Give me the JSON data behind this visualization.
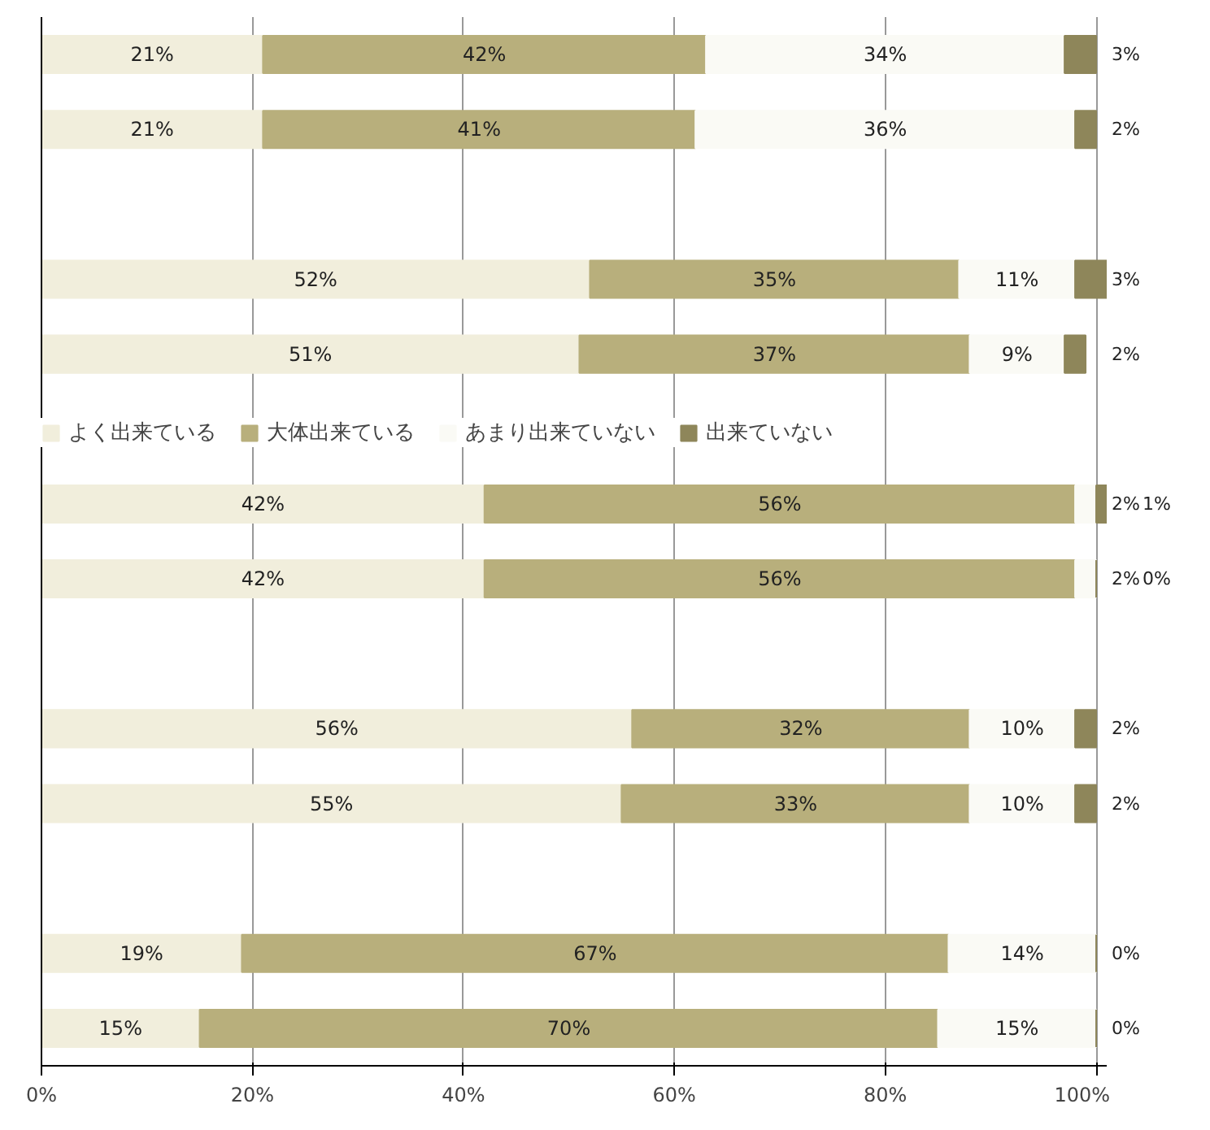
{
  "chart_data": {
    "type": "bar",
    "orientation": "horizontal",
    "stacked": true,
    "categories": [
      null,
      null,
      null,
      null,
      null,
      null,
      null,
      null,
      null,
      null,
      null,
      null,
      null,
      null
    ],
    "series": [
      {
        "name": "よく出来ている",
        "color": "#f1eedc",
        "values": [
          21,
          21,
          null,
          52,
          51,
          null,
          42,
          42,
          null,
          56,
          55,
          null,
          19,
          15
        ],
        "value_labels": [
          "21%",
          "21%",
          null,
          "52%",
          "51%",
          null,
          "42%",
          "42%",
          null,
          "56%",
          "55%",
          null,
          "19%",
          "15%"
        ]
      },
      {
        "name": "大体出来ている",
        "color": "#b8af7c",
        "values": [
          42,
          41,
          null,
          35,
          37,
          null,
          56,
          56,
          null,
          32,
          33,
          null,
          67,
          70
        ],
        "value_labels": [
          "42%",
          "41%",
          null,
          "35%",
          "37%",
          null,
          "56%",
          "56%",
          null,
          "32%",
          "33%",
          null,
          "67%",
          "70%"
        ]
      },
      {
        "name": "あまり出来ていない",
        "color": "#fafaf5",
        "values": [
          34,
          36,
          null,
          11,
          9,
          null,
          2,
          2,
          null,
          10,
          10,
          null,
          14,
          15
        ],
        "value_labels": [
          "34%",
          "36%",
          null,
          "11%",
          "9%",
          null,
          "2%",
          "2%",
          null,
          "10%",
          "10%",
          null,
          "14%",
          "15%"
        ]
      },
      {
        "name": "出来ていない",
        "color": "#8e865a",
        "values": [
          3,
          2,
          null,
          3,
          2,
          null,
          1,
          0,
          null,
          2,
          2,
          null,
          0,
          0
        ],
        "value_labels": [
          "3%",
          "2%",
          null,
          "3%",
          "2%",
          null,
          "1%",
          "0%",
          null,
          "2%",
          "2%",
          null,
          "0%",
          "0%"
        ]
      }
    ],
    "xlim": [
      0,
      101
    ],
    "xticks": [
      {
        "value": 0,
        "label": "0%"
      },
      {
        "value": 20,
        "label": "20%"
      },
      {
        "value": 40,
        "label": "40%"
      },
      {
        "value": 60,
        "label": "60%"
      },
      {
        "value": 80,
        "label": "80%"
      },
      {
        "value": 100,
        "label": "100%"
      }
    ],
    "grid": "x",
    "legend": "center"
  }
}
